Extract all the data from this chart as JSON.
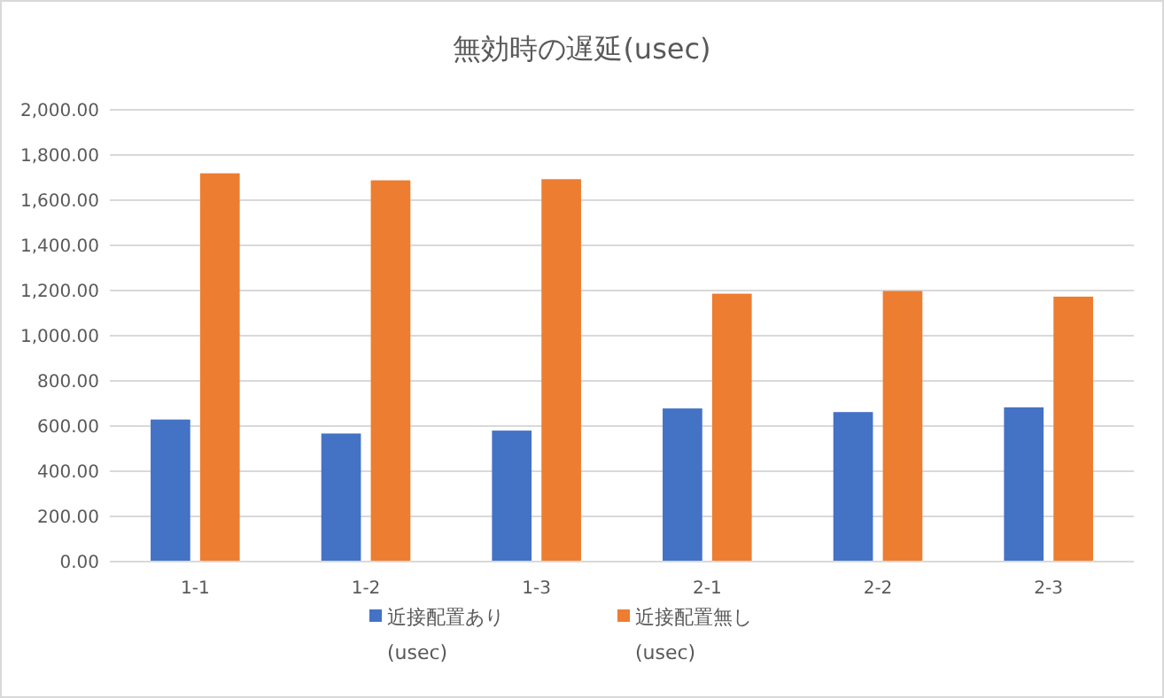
{
  "chart_data": {
    "type": "bar",
    "title": "無効時の遅延(usec)",
    "categories": [
      "1-1",
      "1-2",
      "1-3",
      "2-1",
      "2-2",
      "2-3"
    ],
    "series": [
      {
        "name": "近接配置あり (usec)",
        "color": "#4472c4",
        "values": [
          629,
          567,
          580,
          678,
          662,
          683
        ]
      },
      {
        "name": "近接配置無し (usec)",
        "color": "#ed7d31",
        "values": [
          1719,
          1688,
          1693,
          1186,
          1198,
          1173
        ]
      }
    ],
    "ylim": [
      0,
      2000
    ],
    "yticks": [
      {
        "value": 0,
        "label": "0.00"
      },
      {
        "value": 200,
        "label": "200.00"
      },
      {
        "value": 400,
        "label": "400.00"
      },
      {
        "value": 600,
        "label": "600.00"
      },
      {
        "value": 800,
        "label": "800.00"
      },
      {
        "value": 1000,
        "label": "1,000.00"
      },
      {
        "value": 1200,
        "label": "1,200.00"
      },
      {
        "value": 1400,
        "label": "1,400.00"
      },
      {
        "value": 1600,
        "label": "1,600.00"
      },
      {
        "value": 1800,
        "label": "1,800.00"
      },
      {
        "value": 2000,
        "label": "2,000.00"
      }
    ],
    "grid": "y",
    "legend": "bottom"
  }
}
